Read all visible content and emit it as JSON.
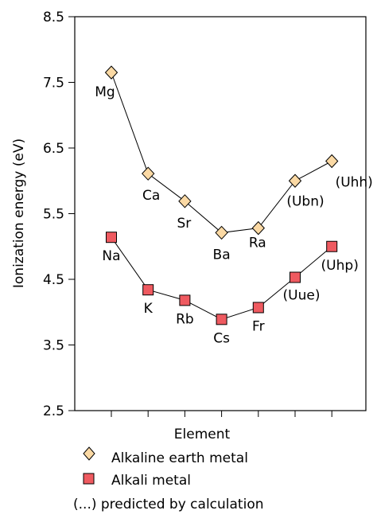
{
  "chart_data": {
    "type": "line",
    "ylabel": "Ionization energy (eV)",
    "xlabel": "Element",
    "ylim": [
      2.5,
      8.5
    ],
    "yticks": [
      "2.5",
      "3.5",
      "4.5",
      "5.5",
      "6.5",
      "7.5",
      "8.5"
    ],
    "ytick_values": [
      2.5,
      3.5,
      4.5,
      5.5,
      6.5,
      7.5,
      8.5
    ],
    "x_positions": [
      1,
      2,
      3,
      4,
      5,
      6,
      7
    ],
    "xlim": [
      0,
      8
    ],
    "grid": false,
    "legend_placement": "bottom",
    "series": [
      {
        "name": "Alkaline earth metal",
        "marker": "diamond",
        "color": "#fbd9a4",
        "labels": [
          "Mg",
          "Ca",
          "Sr",
          "Ba",
          "Ra",
          "(Ubn)",
          "(Uhh)"
        ],
        "values": [
          7.65,
          6.11,
          5.69,
          5.21,
          5.28,
          6.0,
          6.3
        ]
      },
      {
        "name": "Alkali metal",
        "marker": "square",
        "color": "#ef5a60",
        "labels": [
          "Na",
          "K",
          "Rb",
          "Cs",
          "Fr",
          "(Uue)",
          "(Uhp)"
        ],
        "values": [
          5.14,
          4.34,
          4.18,
          3.89,
          4.07,
          4.53,
          5.0
        ]
      }
    ],
    "legend": {
      "entries": [
        "Alkaline earth metal",
        "Alkali metal"
      ],
      "note": "(...)  predicted by calculation"
    }
  }
}
